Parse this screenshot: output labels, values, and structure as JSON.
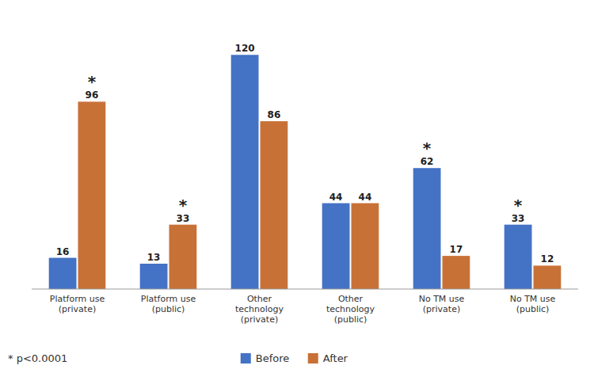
{
  "chart_data": {
    "type": "bar",
    "categories": [
      "Platform use\n(private)",
      "Platform use\n(public)",
      "Other\ntechnology\n(private)",
      "Other\ntechnology\n(public)",
      "No TM use\n(private)",
      "No TM use\n(public)"
    ],
    "series": [
      {
        "name": "Before",
        "color": "#4472C4",
        "values": [
          16,
          13,
          120,
          44,
          62,
          33
        ]
      },
      {
        "name": "After",
        "color": "#C87137",
        "values": [
          96,
          33,
          86,
          44,
          17,
          12
        ]
      }
    ],
    "ylim": [
      0,
      140
    ],
    "data_labels": true,
    "tick_labels": "x",
    "grid": false,
    "legend": "bottom",
    "annotations": [
      {
        "text": "*",
        "category": 0
      },
      {
        "text": "*",
        "category": 1
      },
      {
        "text": "*",
        "category": 4
      },
      {
        "text": "*",
        "category": 5
      }
    ],
    "footnote": "* p<0.0001"
  }
}
